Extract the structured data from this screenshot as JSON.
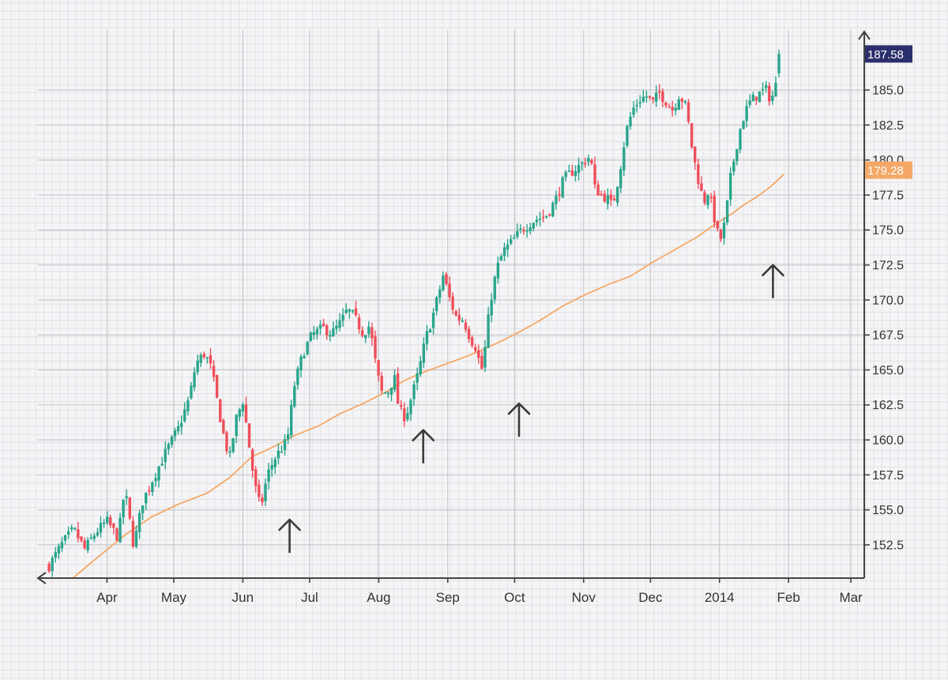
{
  "chart_data": {
    "type": "candlestick",
    "title": "",
    "xlabel": "",
    "ylabel": "",
    "ylim": [
      150.0,
      189.0
    ],
    "grid": true,
    "y_axis_side": "right",
    "y_ticks": [
      152.5,
      155.0,
      157.5,
      160.0,
      162.5,
      165.0,
      167.5,
      170.0,
      172.5,
      175.0,
      177.5,
      180.0,
      182.5,
      185.0
    ],
    "y_tick_labels": [
      "152.5",
      "155.0",
      "157.5",
      "160.0",
      "162.5",
      "165.0",
      "167.5",
      "170.0",
      "172.5",
      "175.0",
      "177.5",
      "180.0",
      "182.5",
      "185.0"
    ],
    "x_ticks": [
      {
        "label": "Apr",
        "day": 20
      },
      {
        "label": "May",
        "day": 50
      },
      {
        "label": "Jun",
        "day": 81
      },
      {
        "label": "Jul",
        "day": 111
      },
      {
        "label": "Aug",
        "day": 142
      },
      {
        "label": "Sep",
        "day": 173
      },
      {
        "label": "Oct",
        "day": 203
      },
      {
        "label": "Nov",
        "day": 234
      },
      {
        "label": "Dec",
        "day": 264
      },
      {
        "label": "2014",
        "day": 295
      },
      {
        "label": "Feb",
        "day": 326
      },
      {
        "label": "Mar",
        "day": 354
      }
    ],
    "last_price": {
      "value": 187.58,
      "label": "187.58",
      "color": "#2b2f6b"
    },
    "ma_price": {
      "value": 179.28,
      "label": "179.28",
      "color": "#f5a867"
    },
    "colors": {
      "up": "#2aa58b",
      "down": "#ef4f5a",
      "ma": "#f5a867",
      "axis": "#444444",
      "grid_major": "#c8c8cc",
      "grid_minor": "#e2e2e6",
      "arrow": "#3a3a3a"
    },
    "series": [
      {
        "name": "",
        "kind": "ohlc",
        "waypoints": [
          [
            -6,
            151.0
          ],
          [
            0,
            152.6
          ],
          [
            5,
            153.6
          ],
          [
            10,
            152.2
          ],
          [
            15,
            153.4
          ],
          [
            20,
            154.2
          ],
          [
            25,
            153.0
          ],
          [
            28,
            156.5
          ],
          [
            32,
            152.4
          ],
          [
            36,
            155.6
          ],
          [
            40,
            157.0
          ],
          [
            46,
            159.0
          ],
          [
            52,
            160.8
          ],
          [
            57,
            163.0
          ],
          [
            60,
            165.5
          ],
          [
            64,
            166.2
          ],
          [
            67,
            165.0
          ],
          [
            69,
            163.2
          ],
          [
            72,
            160.6
          ],
          [
            75,
            158.6
          ],
          [
            78,
            161.5
          ],
          [
            81,
            162.8
          ],
          [
            83,
            160.6
          ],
          [
            85,
            158.2
          ],
          [
            87,
            156.3
          ],
          [
            89,
            155.1
          ],
          [
            92,
            157.5
          ],
          [
            95,
            158.6
          ],
          [
            98,
            159.3
          ],
          [
            101,
            160.0
          ],
          [
            104,
            163.8
          ],
          [
            108,
            166.2
          ],
          [
            112,
            167.5
          ],
          [
            117,
            168.0
          ],
          [
            121,
            167.6
          ],
          [
            125,
            168.4
          ],
          [
            128,
            169.3
          ],
          [
            131,
            168.8
          ],
          [
            135,
            167.6
          ],
          [
            138,
            168.2
          ],
          [
            140,
            166.0
          ],
          [
            143,
            163.4
          ],
          [
            146,
            163.4
          ],
          [
            149,
            164.5
          ],
          [
            151,
            162.2
          ],
          [
            154,
            161.6
          ],
          [
            157,
            163.2
          ],
          [
            160,
            164.9
          ],
          [
            163,
            167.2
          ],
          [
            166,
            168.7
          ],
          [
            169,
            170.5
          ],
          [
            171,
            171.8
          ],
          [
            174,
            170.0
          ],
          [
            177,
            168.7
          ],
          [
            180,
            168.6
          ],
          [
            183,
            167.3
          ],
          [
            186,
            166.5
          ],
          [
            188,
            164.8
          ],
          [
            190,
            166.8
          ],
          [
            192,
            169.8
          ],
          [
            195,
            172.2
          ],
          [
            198,
            173.5
          ],
          [
            201,
            174.0
          ],
          [
            205,
            174.8
          ],
          [
            209,
            175.4
          ],
          [
            213,
            175.8
          ],
          [
            217,
            176.0
          ],
          [
            221,
            177.0
          ],
          [
            225,
            178.6
          ],
          [
            229,
            179.2
          ],
          [
            233,
            179.7
          ],
          [
            237,
            180.3
          ],
          [
            239,
            178.0
          ],
          [
            242,
            177.5
          ],
          [
            245,
            177.2
          ],
          [
            247,
            176.7
          ],
          [
            250,
            179.0
          ],
          [
            253,
            182.0
          ],
          [
            256,
            183.6
          ],
          [
            259,
            184.3
          ],
          [
            262,
            184.6
          ],
          [
            265,
            184.1
          ],
          [
            268,
            184.8
          ],
          [
            271,
            184.2
          ],
          [
            274,
            183.6
          ],
          [
            277,
            184.7
          ],
          [
            280,
            183.8
          ],
          [
            283,
            180.5
          ],
          [
            286,
            178.2
          ],
          [
            288,
            177.0
          ],
          [
            290,
            177.8
          ],
          [
            292,
            176.4
          ],
          [
            294,
            174.8
          ],
          [
            296,
            174.3
          ],
          [
            298,
            176.2
          ],
          [
            300,
            178.8
          ],
          [
            303,
            181.3
          ],
          [
            305,
            182.7
          ],
          [
            308,
            184.0
          ],
          [
            311,
            184.5
          ],
          [
            314,
            184.9
          ],
          [
            316,
            185.0
          ],
          [
            318,
            184.3
          ],
          [
            320,
            185.0
          ],
          [
            322,
            187.7
          ]
        ]
      },
      {
        "name": "",
        "kind": "moving_average",
        "points": [
          [
            0,
            149.5
          ],
          [
            15,
            151.5
          ],
          [
            28,
            153.2
          ],
          [
            40,
            154.5
          ],
          [
            52,
            155.4
          ],
          [
            65,
            156.2
          ],
          [
            75,
            157.3
          ],
          [
            85,
            158.8
          ],
          [
            92,
            159.3
          ],
          [
            97,
            159.7
          ],
          [
            104,
            160.3
          ],
          [
            115,
            161.0
          ],
          [
            125,
            161.9
          ],
          [
            135,
            162.6
          ],
          [
            145,
            163.4
          ],
          [
            153,
            164.2
          ],
          [
            160,
            164.7
          ],
          [
            165,
            165.0
          ],
          [
            170,
            165.3
          ],
          [
            182,
            166.0
          ],
          [
            195,
            166.9
          ],
          [
            205,
            167.7
          ],
          [
            215,
            168.6
          ],
          [
            225,
            169.6
          ],
          [
            235,
            170.4
          ],
          [
            245,
            171.1
          ],
          [
            255,
            171.7
          ],
          [
            265,
            172.7
          ],
          [
            275,
            173.6
          ],
          [
            285,
            174.5
          ],
          [
            292,
            175.3
          ],
          [
            300,
            176.1
          ],
          [
            306,
            176.8
          ],
          [
            312,
            177.4
          ],
          [
            318,
            178.1
          ],
          [
            324,
            179.0
          ]
        ]
      }
    ]
  },
  "annotations": {
    "arrows": [
      {
        "name": "support-touch-jun",
        "day": 102,
        "price": 154.3
      },
      {
        "name": "support-touch-aug",
        "day": 162,
        "price": 160.7
      },
      {
        "name": "support-touch-oct",
        "day": 205,
        "price": 162.6
      },
      {
        "name": "support-touch-jan",
        "day": 319,
        "price": 172.5
      }
    ]
  }
}
